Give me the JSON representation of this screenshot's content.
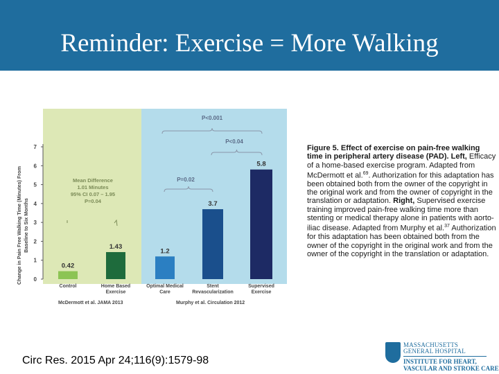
{
  "slide": {
    "title": "Reminder: Exercise = More Walking",
    "citation": "Circ Res. 2015 Apr 24;116(9):1579-98"
  },
  "caption": {
    "bold_lead": "Figure 5. Effect of exercise on pain-free walking time in peripheral artery disease (PAD). Left,",
    "part1": " Efficacy of a home-based exercise program. Adapted from McDermott et al.",
    "ref1": "69",
    "part2": ". Authorization for this adaptation has been obtained both from the owner of the copyright in the original work and from the owner of copyright in the translation or adaptation. ",
    "bold_right": "Right,",
    "part3": " Supervised exercise training improved pain-free walking time more than stenting or medical therapy alone in patients with aorto-iliac disease. Adapted from Murphy et al.",
    "ref2": "37",
    "part4": " Authorization for this adaptation has been obtained both from the owner of the copyright in the original work and from the owner of the copyright in the translation or adaptation."
  },
  "logo": {
    "line1": "MASSACHUSETTS",
    "line2": "GENERAL HOSPITAL",
    "line3": "INSTITUTE FOR HEART,",
    "line4": "VASCULAR AND STROKE CARE"
  },
  "chart_data": {
    "type": "bar",
    "ylabel": "Change in Pain Free Walking Time (Minutes) From Baseline to Six Months",
    "ylim": [
      0,
      7
    ],
    "yticks": [
      "0",
      "1",
      "2",
      "3",
      "4",
      "5",
      "6",
      "7"
    ],
    "categories": [
      "Control",
      "Home Based Exercise",
      "Optimal Medical Care",
      "Stent Revascularization",
      "Supervised Exercise"
    ],
    "values": [
      0.42,
      1.43,
      1.2,
      3.7,
      5.8
    ],
    "value_labels": [
      "0.42",
      "1.43",
      "1.2",
      "3.7",
      "5.8"
    ],
    "bar_colors": [
      "#8cc454",
      "#1e6b3c",
      "#2b7fc2",
      "#1a4f8c",
      "#1d2a64"
    ],
    "panel_colors": {
      "left": "#dde8b6",
      "right": "#b4dceb"
    },
    "sources": [
      "McDermott et al. JAMA 2013",
      "Murphy et al. Circulation 2012"
    ],
    "annotations": {
      "mean_difference": [
        "Mean Difference",
        "1.01 Minutes",
        "95% CI 0.07 – 1.95",
        "P=0.04"
      ],
      "p_overall": "P<0.001",
      "p_stent_vs_supervised": "P<0.04",
      "p_medical_vs_stent": "P=0.02"
    },
    "grid": false
  }
}
